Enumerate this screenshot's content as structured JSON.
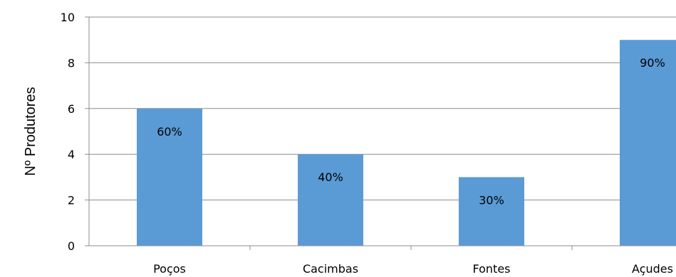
{
  "chart_data": {
    "type": "bar",
    "categories": [
      "Poços",
      "Cacimbas",
      "Fontes",
      "Açudes"
    ],
    "values": [
      6,
      4,
      3,
      9
    ],
    "data_labels": [
      "60%",
      "40%",
      "30%",
      "90%"
    ],
    "title": "",
    "xlabel": "",
    "ylabel": "Nº Produtores",
    "ylim": [
      0,
      10
    ],
    "yticks": [
      "0",
      "2",
      "4",
      "6",
      "8",
      "10"
    ],
    "grid": true,
    "legend": "none",
    "colors": {
      "bar": "#5B9BD5",
      "grid": "#8c8c8c",
      "axis": "#8c8c8c"
    }
  }
}
